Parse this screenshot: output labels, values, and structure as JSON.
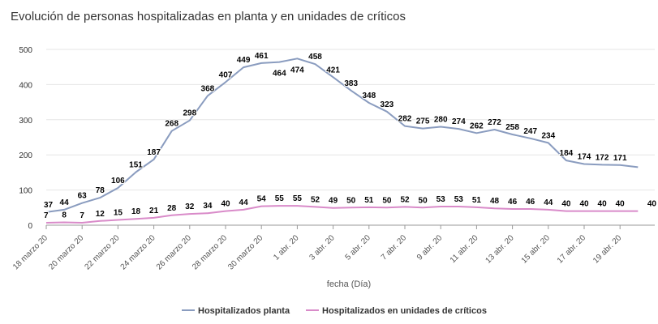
{
  "chart_data": {
    "type": "line",
    "title": "Evolución de personas hospitalizadas en planta y en unidades de críticos",
    "xlabel": "fecha (Día)",
    "ylabel": "",
    "ylim": [
      0,
      500
    ],
    "yticks": [
      0,
      100,
      200,
      300,
      400,
      500
    ],
    "grid": true,
    "legend_position": "bottom",
    "x": [
      "18 marzo 20",
      "19 marzo 20",
      "20 marzo 20",
      "21 marzo 20",
      "22 marzo 20",
      "23 marzo 20",
      "24 marzo 20",
      "25 marzo 20",
      "26 marzo 20",
      "27 marzo 20",
      "28 marzo 20",
      "29 marzo 20",
      "30 marzo 20",
      "31 marzo 20",
      "1 abr. 20",
      "2 abr. 20",
      "3 abr. 20",
      "4 abr. 20",
      "5 abr. 20",
      "6 abr. 20",
      "7 abr. 20",
      "8 abr. 20",
      "9 abr. 20",
      "10 abr. 20",
      "11 abr. 20",
      "12 abr. 20",
      "13 abr. 20",
      "14 abr. 20",
      "15 abr. 20",
      "16 abr. 20",
      "17 abr. 20",
      "18 abr. 20",
      "19 abr. 20",
      "20 abr. 20"
    ],
    "x_tick_labels": [
      {
        "index": 0,
        "label": "18 marzo 20"
      },
      {
        "index": 2,
        "label": "20 marzo 20"
      },
      {
        "index": 4,
        "label": "22 marzo 20"
      },
      {
        "index": 6,
        "label": "24 marzo 20"
      },
      {
        "index": 8,
        "label": "26 marzo 20"
      },
      {
        "index": 10,
        "label": "28 marzo 20"
      },
      {
        "index": 12,
        "label": "30 marzo 20"
      },
      {
        "index": 14,
        "label": "1 abr. 20"
      },
      {
        "index": 16,
        "label": "3 abr. 20"
      },
      {
        "index": 18,
        "label": "5 abr. 20"
      },
      {
        "index": 20,
        "label": "7 abr. 20"
      },
      {
        "index": 22,
        "label": "9 abr. 20"
      },
      {
        "index": 24,
        "label": "11 abr. 20"
      },
      {
        "index": 26,
        "label": "13 abr. 20"
      },
      {
        "index": 28,
        "label": "15 abr. 20"
      },
      {
        "index": 30,
        "label": "17 abr. 20"
      },
      {
        "index": 32,
        "label": "19 abr. 20"
      }
    ],
    "series": [
      {
        "name": "Hospitalizados planta",
        "color": "#8a9cbf",
        "values": [
          37,
          44,
          63,
          78,
          106,
          151,
          187,
          268,
          298,
          368,
          407,
          449,
          461,
          464,
          474,
          458,
          421,
          383,
          348,
          323,
          282,
          275,
          280,
          274,
          262,
          272,
          258,
          247,
          234,
          184,
          174,
          172,
          171,
          165
        ],
        "labels": [
          "37",
          "44",
          "63",
          "78",
          "106",
          "151",
          "187",
          "268",
          "298",
          "368",
          "407",
          "449",
          "461",
          "464",
          "474",
          "458",
          "421",
          "383",
          "348",
          "323",
          "282",
          "275",
          "280",
          "274",
          "262",
          "272",
          "258",
          "247",
          "234",
          "184",
          "174",
          "172",
          "171",
          ""
        ]
      },
      {
        "name": "Hospitalizados en unidades de críticos",
        "color": "#d98bc9",
        "values": [
          7,
          8,
          7,
          12,
          15,
          18,
          21,
          28,
          32,
          34,
          40,
          44,
          54,
          55,
          55,
          52,
          49,
          50,
          51,
          50,
          52,
          50,
          53,
          53,
          51,
          48,
          46,
          46,
          44,
          40,
          40,
          40,
          40,
          40
        ],
        "labels": [
          "7",
          "8",
          "7",
          "12",
          "15",
          "18",
          "21",
          "28",
          "32",
          "34",
          "40",
          "44",
          "54",
          "55",
          "55",
          "52",
          "49",
          "50",
          "51",
          "50",
          "52",
          "50",
          "53",
          "53",
          "51",
          "48",
          "46",
          "46",
          "44",
          "40",
          "40",
          "40",
          "40",
          "40"
        ]
      }
    ]
  }
}
